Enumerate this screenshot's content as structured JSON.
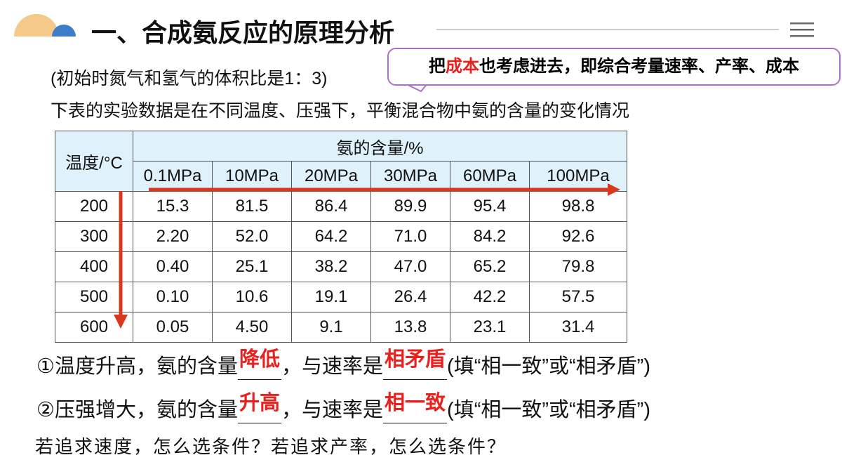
{
  "header": {
    "title": "一、合成氨反应的原理分析"
  },
  "callout": {
    "parts": [
      "把",
      "成本",
      "也考虑进去，即综合考量速率、产率、成本"
    ]
  },
  "intro": [
    "(初始时氮气和氢气的体积比是1：3)",
    "下表的实验数据是在不同温度、压强下，平衡混合物中氨的含量的变化情况"
  ],
  "table": {
    "corner": "温度/°C",
    "group_header": "氨的含量/%",
    "columns": [
      "0.1MPa",
      "10MPa",
      "20MPa",
      "30MPa",
      "60MPa",
      "100MPa"
    ],
    "rows": [
      [
        "200",
        "15.3",
        "81.5",
        "86.4",
        "89.9",
        "95.4",
        "98.8"
      ],
      [
        "300",
        "2.20",
        "52.0",
        "64.2",
        "71.0",
        "84.2",
        "92.6"
      ],
      [
        "400",
        "0.40",
        "25.1",
        "38.2",
        "47.0",
        "65.2",
        "79.8"
      ],
      [
        "500",
        "0.10",
        "10.6",
        "19.1",
        "26.4",
        "42.2",
        "57.5"
      ],
      [
        "600",
        "0.05",
        "4.50",
        "9.1",
        "13.8",
        "23.1",
        "31.4"
      ]
    ]
  },
  "questions": [
    {
      "prefix": "①温度升高，氨的含量",
      "answer1": "降低",
      "middle": "，与速率是",
      "answer2": "相矛盾",
      "suffix": "(填“相一致”或“相矛盾”)"
    },
    {
      "prefix": "②压强增大，氨的含量",
      "answer1": "升高",
      "middle": "，与速率是",
      "answer2": "相一致",
      "suffix": "(填“相一致”或“相矛盾”)"
    }
  ],
  "closing": "若追求速度，怎么选条件？若追求产率，怎么选条件？"
}
